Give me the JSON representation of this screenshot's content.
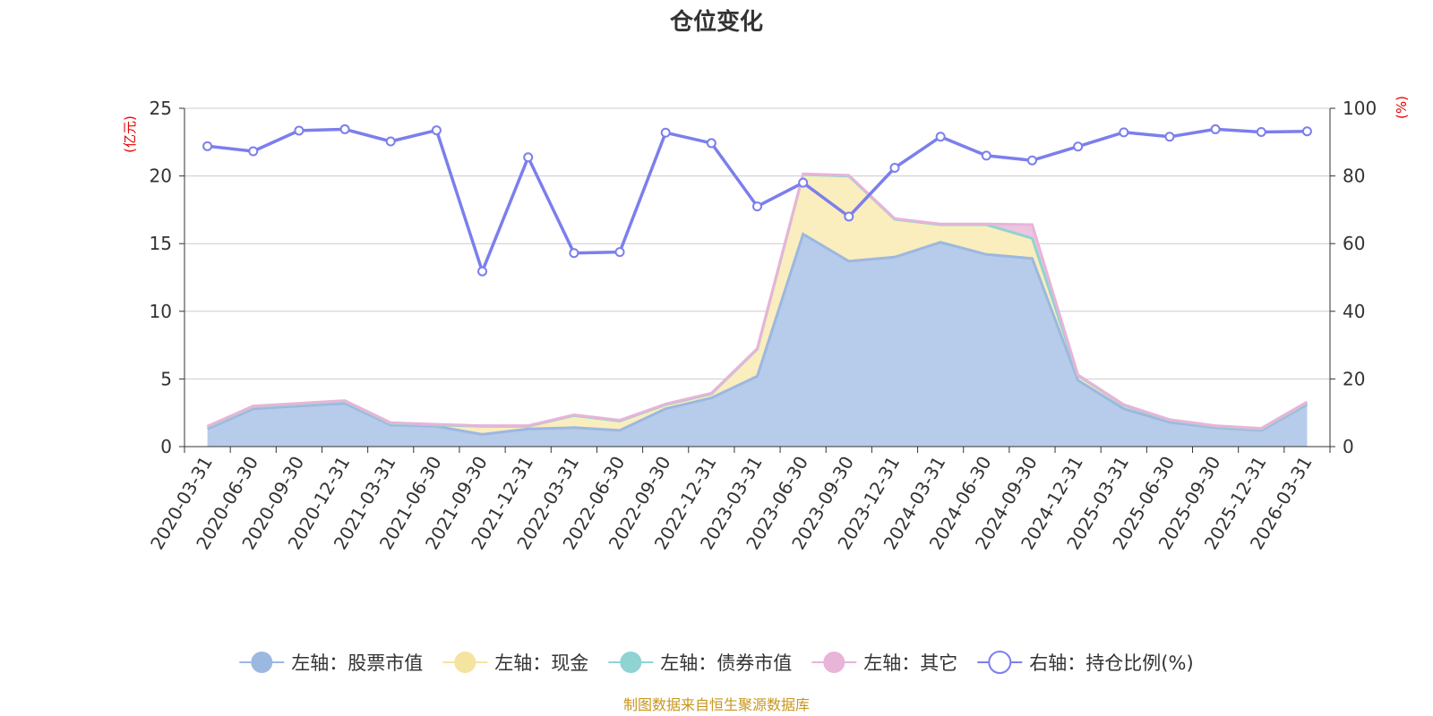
{
  "chart_data": {
    "type": "area",
    "title": "仓位变化",
    "left_unit": "(亿元)",
    "right_unit": "(%)",
    "categories": [
      "2020-03-31",
      "2020-06-30",
      "2020-09-30",
      "2020-12-31",
      "2021-03-31",
      "2021-06-30",
      "2021-09-30",
      "2021-12-31",
      "2022-03-31",
      "2022-06-30",
      "2022-09-30",
      "2022-12-31",
      "2023-03-31",
      "2023-06-30",
      "2023-09-30",
      "2023-12-31",
      "2024-03-31",
      "2024-06-30",
      "2024-09-30",
      "2024-12-31",
      "2025-03-31",
      "2025-06-30",
      "2025-09-30",
      "2025-12-31",
      "2026-03-31"
    ],
    "left_axis": {
      "min": 0,
      "max": 25,
      "ticks": [
        0,
        5,
        10,
        15,
        20,
        25
      ]
    },
    "right_axis": {
      "min": 0,
      "max": 100,
      "ticks": [
        0,
        20,
        40,
        60,
        80,
        100
      ]
    },
    "grid": true,
    "legend_position": "bottom",
    "series": [
      {
        "name": "左轴：股票市值",
        "axis": "left",
        "stacked": true,
        "color": "#9bb8e0",
        "fill": "#b7cbea",
        "values": [
          1.3,
          2.8,
          3.0,
          3.2,
          1.6,
          1.5,
          0.9,
          1.3,
          1.4,
          1.2,
          2.8,
          3.6,
          5.2,
          15.7,
          13.7,
          14.0,
          15.1,
          14.2,
          13.9,
          4.9,
          2.8,
          1.8,
          1.4,
          1.2,
          3.1
        ]
      },
      {
        "name": "左轴：现金",
        "axis": "left",
        "stacked": true,
        "color": "#f5e3a0",
        "fill": "#faedbe",
        "values": [
          0.15,
          0.15,
          0.15,
          0.15,
          0.12,
          0.1,
          0.6,
          0.2,
          0.9,
          0.7,
          0.3,
          0.3,
          2.0,
          4.4,
          6.3,
          2.8,
          1.3,
          2.2,
          1.5,
          0.35,
          0.25,
          0.15,
          0.1,
          0.1,
          0.15
        ]
      },
      {
        "name": "左轴：债券市值",
        "axis": "left",
        "stacked": true,
        "color": "#8fd3d3",
        "fill": "#a9dede",
        "values": [
          0,
          0,
          0,
          0,
          0,
          0,
          0,
          0,
          0,
          0,
          0,
          0,
          0,
          0,
          0,
          0,
          0,
          0,
          0,
          0,
          0,
          0,
          0,
          0,
          0
        ]
      },
      {
        "name": "左轴：其它",
        "axis": "left",
        "stacked": true,
        "color": "#e8b4d8",
        "fill": "#eec4e0",
        "values": [
          0.05,
          0.05,
          0.05,
          0.05,
          0.05,
          0.05,
          0.05,
          0.05,
          0.05,
          0.05,
          0.05,
          0.05,
          0.05,
          0.05,
          0.05,
          0.05,
          0.05,
          0.05,
          1.0,
          0.05,
          0.05,
          0.05,
          0.05,
          0.05,
          0.05
        ]
      },
      {
        "name": "右轴：持仓比例(%)",
        "axis": "right",
        "type": "line",
        "color": "#7b7fec",
        "values": [
          88.8,
          87.3,
          93.4,
          93.8,
          90.2,
          93.5,
          51.8,
          85.5,
          57.2,
          57.5,
          92.8,
          89.7,
          71.0,
          78.0,
          68.0,
          82.4,
          91.6,
          86.0,
          84.6,
          88.7,
          92.9,
          91.6,
          93.8,
          93.0,
          93.2
        ]
      }
    ]
  },
  "footer": {
    "source": "制图数据来自恒生聚源数据库"
  }
}
